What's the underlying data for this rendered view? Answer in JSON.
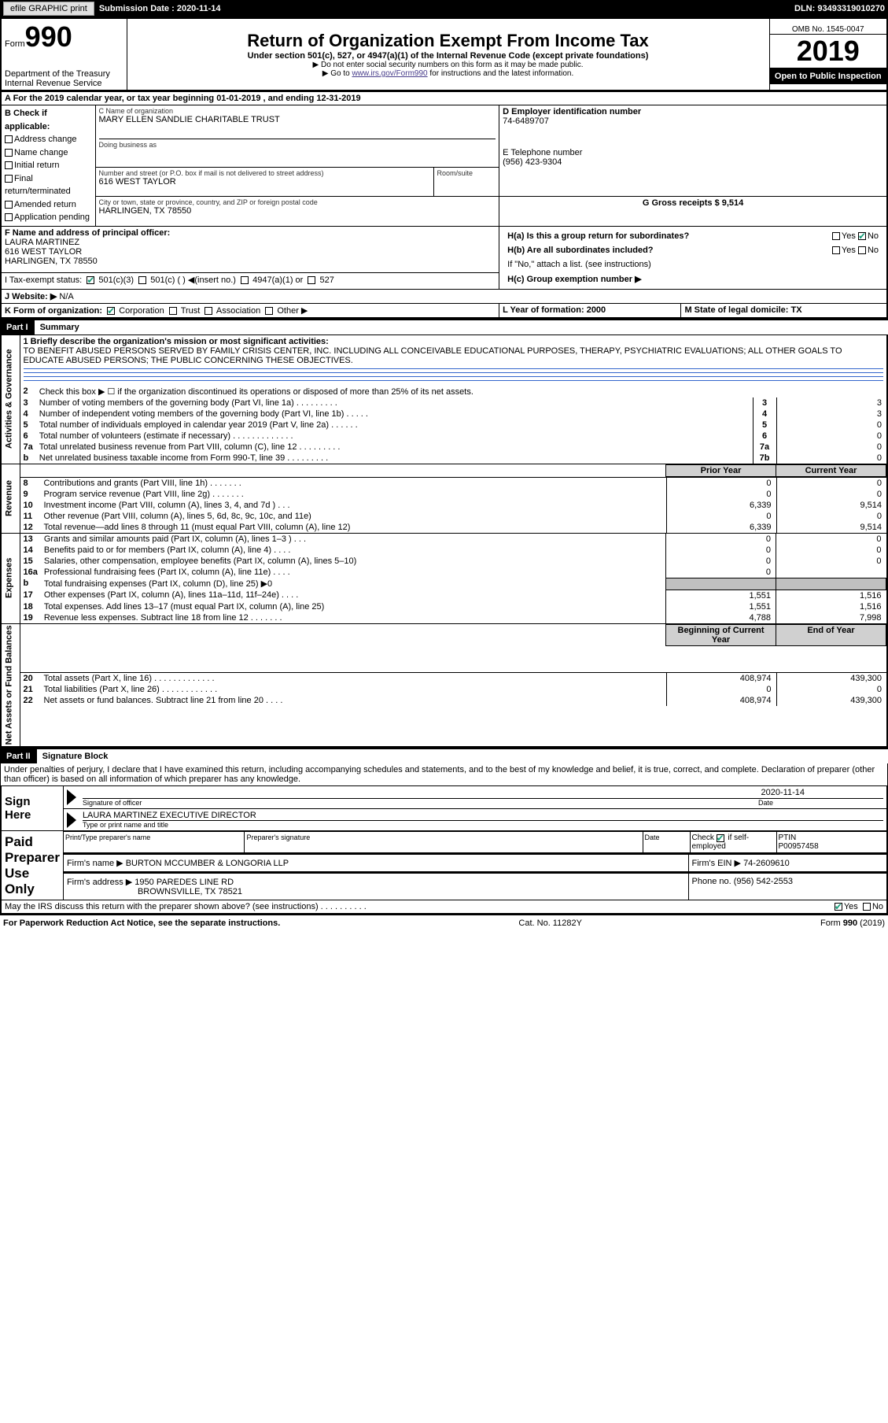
{
  "top_bar": {
    "efile": "efile GRAPHIC print",
    "submission_label": "Submission Date : 2020-11-14",
    "dln": "DLN: 93493319010270"
  },
  "header": {
    "form_label": "Form",
    "form_num": "990",
    "dept": "Department of the Treasury\nInternal Revenue Service",
    "title": "Return of Organization Exempt From Income Tax",
    "subtitle": "Under section 501(c), 527, or 4947(a)(1) of the Internal Revenue Code (except private foundations)",
    "note1": "▶ Do not enter social security numbers on this form as it may be made public.",
    "note2_prefix": "▶ Go to ",
    "note2_link": "www.irs.gov/Form990",
    "note2_suffix": " for instructions and the latest information.",
    "omb": "OMB No. 1545-0047",
    "year": "2019",
    "inspection": "Open to Public Inspection"
  },
  "section_a": {
    "line": "A For the 2019 calendar year, or tax year beginning 01-01-2019    , and ending 12-31-2019",
    "b_label": "B Check if applicable:",
    "b_opts": [
      "Address change",
      "Name change",
      "Initial return",
      "Final return/terminated",
      "Amended return",
      "Application pending"
    ],
    "c_label": "C Name of organization",
    "c_name": "MARY ELLEN SANDLIE CHARITABLE TRUST",
    "dba_label": "Doing business as",
    "addr_label": "Number and street (or P.O. box if mail is not delivered to street address)",
    "addr": "616 WEST TAYLOR",
    "room_label": "Room/suite",
    "city_label": "City or town, state or province, country, and ZIP or foreign postal code",
    "city": "HARLINGEN, TX  78550",
    "d_label": "D Employer identification number",
    "d_val": "74-6489707",
    "e_label": "E Telephone number",
    "e_val": "(956) 423-9304",
    "g_label": "G Gross receipts $ 9,514",
    "f_label": "F  Name and address of principal officer:",
    "f_name": "LAURA MARTINEZ",
    "f_addr1": "616 WEST TAYLOR",
    "f_addr2": "HARLINGEN, TX  78550",
    "ha_label": "H(a)  Is this a group return for subordinates?",
    "hb_label": "H(b)  Are all subordinates included?",
    "hb_note": "If \"No,\" attach a list. (see instructions)",
    "hc_label": "H(c)  Group exemption number ▶",
    "i_label": "I    Tax-exempt status:",
    "i_opts": [
      "501(c)(3)",
      "501(c) (  ) ◀(insert no.)",
      "4947(a)(1) or",
      "527"
    ],
    "j_label": "J   Website: ▶",
    "j_val": "N/A",
    "k_label": "K Form of organization:",
    "k_opts": [
      "Corporation",
      "Trust",
      "Association",
      "Other ▶"
    ],
    "l_label": "L Year of formation: 2000",
    "m_label": "M State of legal domicile: TX",
    "yes": "Yes",
    "no": "No"
  },
  "part1": {
    "header": "Part I",
    "title": "Summary",
    "q1": "1  Briefly describe the organization's mission or most significant activities:",
    "q1_text": "TO BENEFIT ABUSED PERSONS SERVED BY FAMILY CRISIS CENTER, INC. INCLUDING ALL CONCEIVABLE EDUCATIONAL PURPOSES, THERAPY, PSYCHIATRIC EVALUATIONS; ALL OTHER GOALS TO EDUCATE ABUSED PERSONS; THE PUBLIC CONCERNING THESE OBJECTIVES.",
    "vert_ag": "Activities & Governance",
    "vert_rev": "Revenue",
    "vert_exp": "Expenses",
    "vert_net": "Net Assets or Fund Balances",
    "rows_ag": [
      {
        "n": "2",
        "t": "Check this box ▶ ☐  if the organization discontinued its operations or disposed of more than 25% of its net assets.",
        "c": "",
        "p": "",
        "y": ""
      },
      {
        "n": "3",
        "t": "Number of voting members of the governing body (Part VI, line 1a)  .    .    .    .    .    .    .    .    .",
        "c": "3",
        "p": "",
        "y": "3"
      },
      {
        "n": "4",
        "t": "Number of independent voting members of the governing body (Part VI, line 1b)  .    .    .    .    .",
        "c": "4",
        "p": "",
        "y": "3"
      },
      {
        "n": "5",
        "t": "Total number of individuals employed in calendar year 2019 (Part V, line 2a)  .    .    .    .    .    .",
        "c": "5",
        "p": "",
        "y": "0"
      },
      {
        "n": "6",
        "t": "Total number of volunteers (estimate if necessary)   .    .    .    .    .    .    .    .    .    .    .    .    .",
        "c": "6",
        "p": "",
        "y": "0"
      },
      {
        "n": "7a",
        "t": "Total unrelated business revenue from Part VIII, column (C), line 12  .    .    .    .    .    .    .    .    .",
        "c": "7a",
        "p": "",
        "y": "0"
      },
      {
        "n": "b",
        "t": "Net unrelated business taxable income from Form 990-T, line 39   .    .    .    .    .    .    .    .    .",
        "c": "7b",
        "p": "",
        "y": "0"
      }
    ],
    "col_prior": "Prior Year",
    "col_current": "Current Year",
    "rows_rev": [
      {
        "n": "8",
        "t": "Contributions and grants (Part VIII, line 1h)   .    .    .    .    .    .    .",
        "p": "0",
        "y": "0"
      },
      {
        "n": "9",
        "t": "Program service revenue (Part VIII, line 2g)   .    .    .    .    .    .    .",
        "p": "0",
        "y": "0"
      },
      {
        "n": "10",
        "t": "Investment income (Part VIII, column (A), lines 3, 4, and 7d )   .    .    .",
        "p": "6,339",
        "y": "9,514"
      },
      {
        "n": "11",
        "t": "Other revenue (Part VIII, column (A), lines 5, 6d, 8c, 9c, 10c, and 11e)",
        "p": "0",
        "y": "0"
      },
      {
        "n": "12",
        "t": "Total revenue—add lines 8 through 11 (must equal Part VIII, column (A), line 12)",
        "p": "6,339",
        "y": "9,514"
      }
    ],
    "rows_exp": [
      {
        "n": "13",
        "t": "Grants and similar amounts paid (Part IX, column (A), lines 1–3 )  .    .    .",
        "p": "0",
        "y": "0"
      },
      {
        "n": "14",
        "t": "Benefits paid to or for members (Part IX, column (A), line 4)  .    .    .    .",
        "p": "0",
        "y": "0"
      },
      {
        "n": "15",
        "t": "Salaries, other compensation, employee benefits (Part IX, column (A), lines 5–10)",
        "p": "0",
        "y": "0"
      },
      {
        "n": "16a",
        "t": "Professional fundraising fees (Part IX, column (A), line 11e)  .    .    .    .",
        "p": "0",
        "y": ""
      },
      {
        "n": "b",
        "t": "Total fundraising expenses (Part IX, column (D), line 25) ▶0",
        "p": "[gray]",
        "y": "[gray]"
      },
      {
        "n": "17",
        "t": "Other expenses (Part IX, column (A), lines 11a–11d, 11f–24e)  .    .    .    .",
        "p": "1,551",
        "y": "1,516"
      },
      {
        "n": "18",
        "t": "Total expenses. Add lines 13–17 (must equal Part IX, column (A), line 25)",
        "p": "1,551",
        "y": "1,516"
      },
      {
        "n": "19",
        "t": "Revenue less expenses. Subtract line 18 from line 12  .    .    .    .    .    .    .",
        "p": "4,788",
        "y": "7,998"
      }
    ],
    "col_begin": "Beginning of Current Year",
    "col_end": "End of Year",
    "rows_net": [
      {
        "n": "20",
        "t": "Total assets (Part X, line 16)  .    .    .    .    .    .    .    .    .    .    .    .    .",
        "p": "408,974",
        "y": "439,300"
      },
      {
        "n": "21",
        "t": "Total liabilities (Part X, line 26)  .    .    .    .    .    .    .    .    .    .    .    .",
        "p": "0",
        "y": "0"
      },
      {
        "n": "22",
        "t": "Net assets or fund balances. Subtract line 21 from line 20  .    .    .    .",
        "p": "408,974",
        "y": "439,300"
      }
    ]
  },
  "part2": {
    "header": "Part II",
    "title": "Signature Block",
    "declaration": "Under penalties of perjury, I declare that I have examined this return, including accompanying schedules and statements, and to the best of my knowledge and belief, it is true, correct, and complete. Declaration of preparer (other than officer) is based on all information of which preparer has any knowledge.",
    "sign_here": "Sign Here",
    "sig_officer": "Signature of officer",
    "sig_date_val": "2020-11-14",
    "sig_date": "Date",
    "sig_name": "LAURA MARTINEZ  EXECUTIVE DIRECTOR",
    "sig_name_label": "Type or print name and title",
    "paid": "Paid Preparer Use Only",
    "prep_name_label": "Print/Type preparer's name",
    "prep_sig_label": "Preparer's signature",
    "prep_date_label": "Date",
    "prep_check": "Check ☑ if self-employed",
    "ptin_label": "PTIN",
    "ptin": "P00957458",
    "firm_name_label": "Firm's name    ▶",
    "firm_name": "BURTON MCCUMBER & LONGORIA LLP",
    "firm_ein_label": "Firm's EIN ▶",
    "firm_ein": "74-2609610",
    "firm_addr_label": "Firm's address ▶",
    "firm_addr1": "1950 PAREDES LINE RD",
    "firm_addr2": "BROWNSVILLE, TX  78521",
    "phone_label": "Phone no.",
    "phone": "(956) 542-2553",
    "discuss": "May the IRS discuss this return with the preparer shown above? (see instructions)   .    .    .    .    .    .    .    .    .    ."
  },
  "footer": {
    "left": "For Paperwork Reduction Act Notice, see the separate instructions.",
    "mid": "Cat. No. 11282Y",
    "right": "Form 990 (2019)"
  }
}
